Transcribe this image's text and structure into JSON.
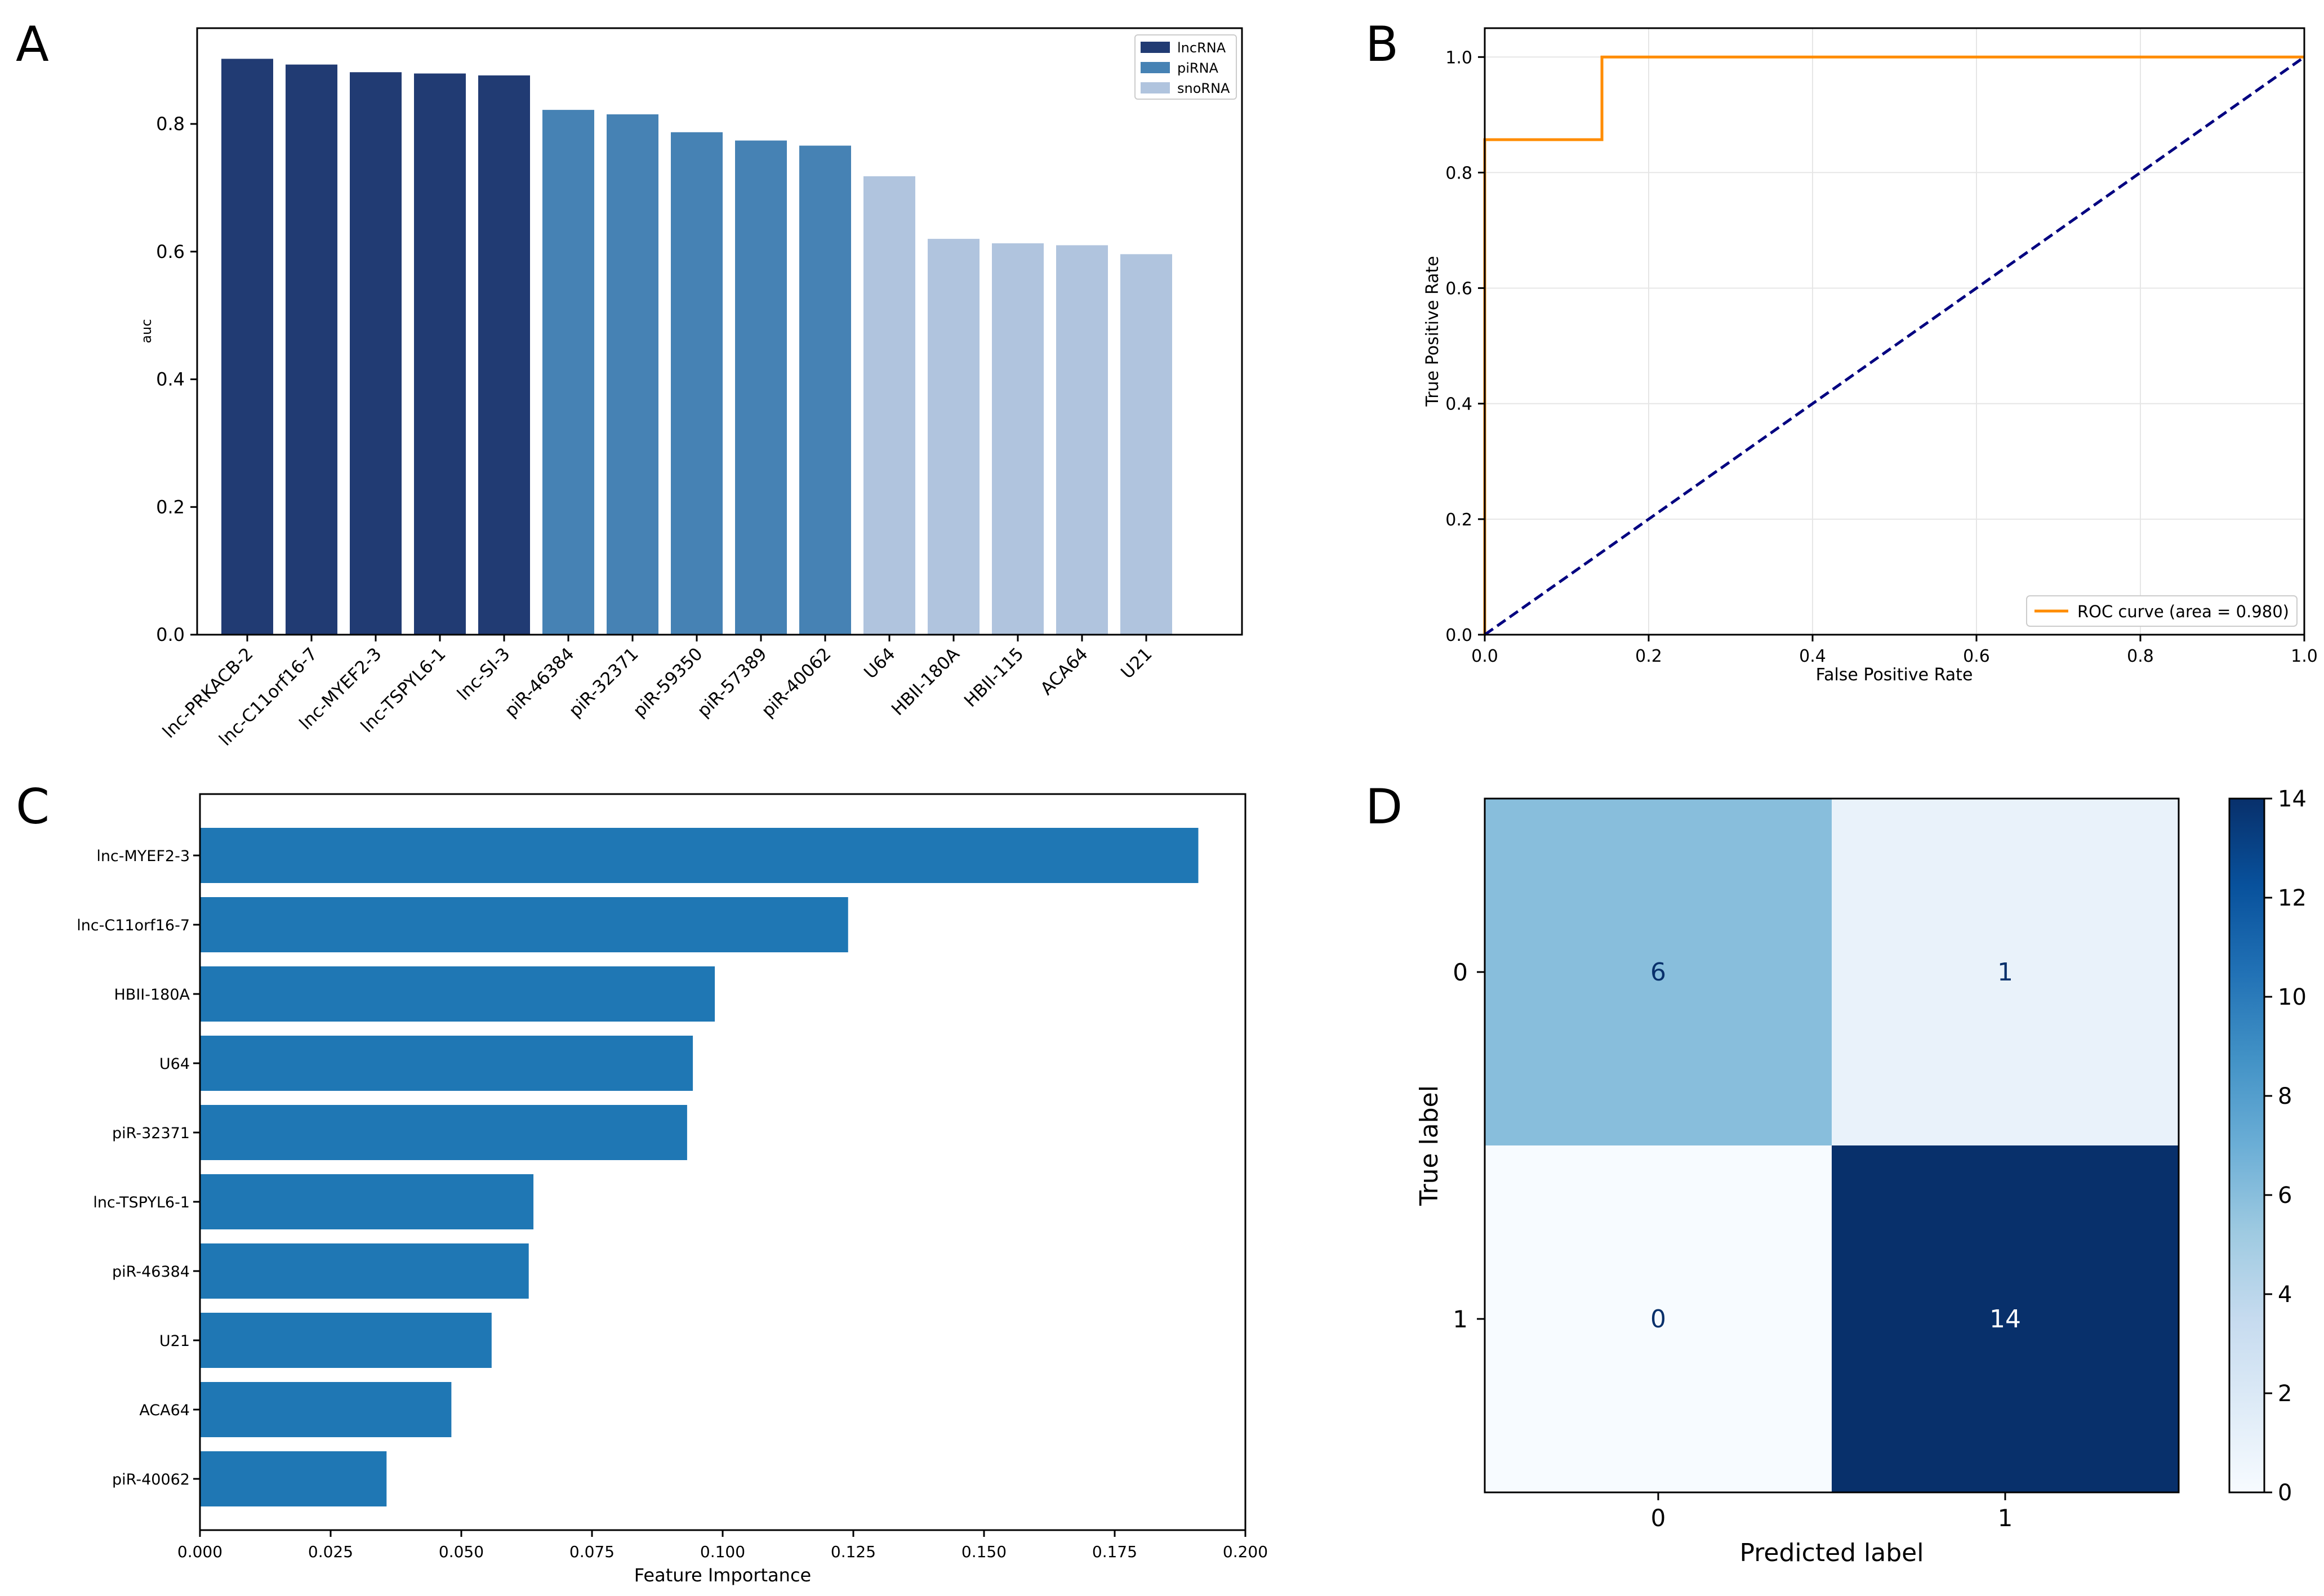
{
  "panels": {
    "a": {
      "letter": "A"
    },
    "b": {
      "letter": "B"
    },
    "c": {
      "letter": "C"
    },
    "d": {
      "letter": "D"
    }
  },
  "chart_data": [
    {
      "panel": "A",
      "type": "bar",
      "title": "",
      "xlabel": "",
      "ylabel": "auc",
      "ylim": [
        0,
        0.95
      ],
      "yticks": [
        "0.0",
        "0.2",
        "0.4",
        "0.6",
        "0.8"
      ],
      "categories": [
        "lnc-PRKACB-2",
        "lnc-C11orf16-7",
        "lnc-MYEF2-3",
        "lnc-TSPYL6-1",
        "lnc-SI-3",
        "piR-46384",
        "piR-32371",
        "piR-59350",
        "piR-57389",
        "piR-40062",
        "U64",
        "HBII-180A",
        "HBII-115",
        "ACA64",
        "U21"
      ],
      "values": [
        0.902,
        0.893,
        0.881,
        0.879,
        0.876,
        0.822,
        0.815,
        0.787,
        0.774,
        0.766,
        0.718,
        0.62,
        0.613,
        0.61,
        0.596
      ],
      "groups": [
        "lncRNA",
        "lncRNA",
        "lncRNA",
        "lncRNA",
        "lncRNA",
        "piRNA",
        "piRNA",
        "piRNA",
        "piRNA",
        "piRNA",
        "snoRNA",
        "snoRNA",
        "snoRNA",
        "snoRNA",
        "snoRNA"
      ],
      "legend": [
        {
          "name": "lncRNA",
          "color": "#213b73"
        },
        {
          "name": "piRNA",
          "color": "#4682b4"
        },
        {
          "name": "snoRNA",
          "color": "#b0c4de"
        }
      ],
      "legend_position": "top-right"
    },
    {
      "panel": "B",
      "type": "line",
      "title": "",
      "xlabel": "False Positive Rate",
      "ylabel": "True Positive Rate",
      "xlim": [
        0,
        1
      ],
      "ylim": [
        0,
        1.05
      ],
      "xticks": [
        "0.0",
        "0.2",
        "0.4",
        "0.6",
        "0.8",
        "1.0"
      ],
      "yticks": [
        "0.0",
        "0.2",
        "0.4",
        "0.6",
        "0.8",
        "1.0"
      ],
      "grid": true,
      "series": [
        {
          "name": "ROC curve (area = 0.980)",
          "color": "#ff8c00",
          "style": "solid",
          "x": [
            0,
            0,
            0.143,
            0.143,
            1.0
          ],
          "y": [
            0,
            0.857,
            0.857,
            1.0,
            1.0
          ]
        },
        {
          "name": "chance",
          "color": "#000080",
          "style": "dashed",
          "x": [
            0,
            1
          ],
          "y": [
            0,
            1
          ]
        }
      ],
      "legend": [
        "ROC curve (area = 0.980)"
      ],
      "legend_position": "bottom-right"
    },
    {
      "panel": "C",
      "type": "bar",
      "orientation": "horizontal",
      "title": "",
      "xlabel": "Feature Importance",
      "ylabel": "",
      "xlim": [
        0,
        0.2
      ],
      "xticks": [
        "0.000",
        "0.025",
        "0.050",
        "0.075",
        "0.100",
        "0.125",
        "0.150",
        "0.175",
        "0.200"
      ],
      "categories": [
        "lnc-MYEF2-3",
        "lnc-C11orf16-7",
        "HBII-180A",
        "U64",
        "piR-32371",
        "lnc-TSPYL6-1",
        "piR-46384",
        "U21",
        "ACA64",
        "piR-40062"
      ],
      "values": [
        0.191,
        0.124,
        0.0985,
        0.0943,
        0.0932,
        0.0638,
        0.0629,
        0.0558,
        0.0481,
        0.0357
      ],
      "color": "#1f77b4"
    },
    {
      "panel": "D",
      "type": "heatmap",
      "title": "",
      "xlabel": "Predicted label",
      "ylabel": "True label",
      "row_labels": [
        "0",
        "1"
      ],
      "col_labels": [
        "0",
        "1"
      ],
      "values": [
        [
          6,
          1
        ],
        [
          0,
          14
        ]
      ],
      "cell_labels": [
        [
          "6",
          "1"
        ],
        [
          "0",
          "14"
        ]
      ],
      "vmin": 0,
      "vmax": 14,
      "colormap": "Blues",
      "colorbar_ticks": [
        "0",
        "2",
        "4",
        "6",
        "8",
        "10",
        "12",
        "14"
      ]
    }
  ]
}
